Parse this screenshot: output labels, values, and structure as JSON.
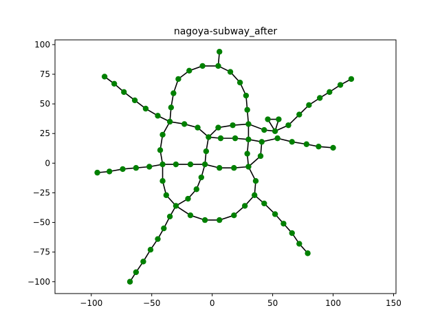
{
  "chart_data": {
    "type": "scatter",
    "title": "nagoya-subway_after",
    "xlabel": "",
    "ylabel": "",
    "xlim": [
      -130,
      152
    ],
    "ylim": [
      -110,
      104
    ],
    "xticks": [
      -100,
      -50,
      0,
      50,
      100,
      150
    ],
    "yticks": [
      -100,
      -75,
      -50,
      -25,
      0,
      25,
      50,
      75,
      100
    ],
    "grid": false,
    "point_color": "#008000",
    "edge_color": "#000000",
    "nodes": [
      [
        6,
        94
      ],
      [
        5,
        82
      ],
      [
        -8,
        82
      ],
      [
        -19,
        78
      ],
      [
        -28,
        71
      ],
      [
        -32,
        59
      ],
      [
        -34,
        47
      ],
      [
        -35,
        35
      ],
      [
        -41,
        24
      ],
      [
        -43,
        11
      ],
      [
        -41,
        -1
      ],
      [
        -41,
        -15
      ],
      [
        -38,
        -27
      ],
      [
        -30,
        -36
      ],
      [
        -18,
        -44
      ],
      [
        -6,
        -48
      ],
      [
        6,
        -48
      ],
      [
        18,
        -44
      ],
      [
        27,
        -36
      ],
      [
        35,
        -27
      ],
      [
        36,
        -15
      ],
      [
        30,
        -3
      ],
      [
        29,
        8
      ],
      [
        30,
        20
      ],
      [
        30,
        33
      ],
      [
        29,
        45
      ],
      [
        28,
        57
      ],
      [
        23,
        68
      ],
      [
        15,
        77
      ],
      [
        -89,
        73
      ],
      [
        -81,
        67
      ],
      [
        -73,
        60
      ],
      [
        -64,
        53
      ],
      [
        -55,
        46
      ],
      [
        -45,
        40
      ],
      [
        -23,
        33
      ],
      [
        -12,
        30
      ],
      [
        -3,
        22
      ],
      [
        -5,
        10
      ],
      [
        -6,
        -1
      ],
      [
        -9,
        -12
      ],
      [
        -13,
        -22
      ],
      [
        -20,
        -30
      ],
      [
        -95,
        -8
      ],
      [
        -85,
        -7
      ],
      [
        -74,
        -5
      ],
      [
        -63,
        -4
      ],
      [
        -52,
        -3
      ],
      [
        -30,
        -1
      ],
      [
        -18,
        -1
      ],
      [
        5,
        30
      ],
      [
        17,
        32
      ],
      [
        6,
        -4
      ],
      [
        18,
        -4
      ],
      [
        7,
        21
      ],
      [
        19,
        21
      ],
      [
        43,
        28
      ],
      [
        52,
        27
      ],
      [
        41,
        18
      ],
      [
        54,
        21
      ],
      [
        66,
        18
      ],
      [
        78,
        16
      ],
      [
        88,
        14
      ],
      [
        100,
        13
      ],
      [
        46,
        37
      ],
      [
        55,
        37
      ],
      [
        63,
        32
      ],
      [
        72,
        41
      ],
      [
        80,
        49
      ],
      [
        89,
        55
      ],
      [
        97,
        60
      ],
      [
        106,
        66
      ],
      [
        115,
        71
      ],
      [
        40,
        6
      ],
      [
        43,
        -34
      ],
      [
        52,
        -43
      ],
      [
        59,
        -51
      ],
      [
        66,
        -59
      ],
      [
        72,
        -68
      ],
      [
        79,
        -76
      ],
      [
        -40,
        -55
      ],
      [
        -35,
        -45
      ],
      [
        -45,
        -64
      ],
      [
        -51,
        -73
      ],
      [
        -57,
        -83
      ],
      [
        -63,
        -92
      ],
      [
        -68,
        -100
      ]
    ],
    "edges": [
      [
        0,
        1
      ],
      [
        1,
        2
      ],
      [
        2,
        3
      ],
      [
        3,
        4
      ],
      [
        4,
        5
      ],
      [
        5,
        6
      ],
      [
        6,
        7
      ],
      [
        7,
        8
      ],
      [
        8,
        9
      ],
      [
        9,
        10
      ],
      [
        10,
        11
      ],
      [
        11,
        12
      ],
      [
        12,
        13
      ],
      [
        13,
        14
      ],
      [
        14,
        15
      ],
      [
        15,
        16
      ],
      [
        16,
        17
      ],
      [
        17,
        18
      ],
      [
        18,
        19
      ],
      [
        19,
        20
      ],
      [
        20,
        21
      ],
      [
        21,
        22
      ],
      [
        22,
        23
      ],
      [
        23,
        24
      ],
      [
        24,
        25
      ],
      [
        25,
        26
      ],
      [
        26,
        27
      ],
      [
        27,
        28
      ],
      [
        28,
        1
      ],
      [
        29,
        30
      ],
      [
        30,
        31
      ],
      [
        31,
        32
      ],
      [
        32,
        33
      ],
      [
        33,
        34
      ],
      [
        34,
        7
      ],
      [
        7,
        35
      ],
      [
        35,
        36
      ],
      [
        36,
        37
      ],
      [
        37,
        38
      ],
      [
        38,
        39
      ],
      [
        39,
        40
      ],
      [
        40,
        41
      ],
      [
        41,
        42
      ],
      [
        42,
        13
      ],
      [
        43,
        44
      ],
      [
        44,
        45
      ],
      [
        45,
        46
      ],
      [
        46,
        47
      ],
      [
        47,
        10
      ],
      [
        10,
        48
      ],
      [
        48,
        49
      ],
      [
        49,
        39
      ],
      [
        39,
        52
      ],
      [
        52,
        53
      ],
      [
        53,
        21
      ],
      [
        21,
        73
      ],
      [
        73,
        58
      ],
      [
        37,
        50
      ],
      [
        50,
        51
      ],
      [
        51,
        24
      ],
      [
        24,
        56
      ],
      [
        56,
        57
      ],
      [
        57,
        64
      ],
      [
        37,
        54
      ],
      [
        54,
        55
      ],
      [
        55,
        23
      ],
      [
        23,
        58
      ],
      [
        58,
        59
      ],
      [
        59,
        60
      ],
      [
        60,
        61
      ],
      [
        61,
        62
      ],
      [
        62,
        63
      ],
      [
        64,
        65
      ],
      [
        65,
        57
      ],
      [
        57,
        66
      ],
      [
        66,
        67
      ],
      [
        67,
        68
      ],
      [
        68,
        69
      ],
      [
        69,
        70
      ],
      [
        70,
        71
      ],
      [
        71,
        72
      ],
      [
        19,
        74
      ],
      [
        74,
        75
      ],
      [
        75,
        76
      ],
      [
        76,
        77
      ],
      [
        77,
        78
      ],
      [
        78,
        79
      ],
      [
        13,
        81
      ],
      [
        81,
        80
      ],
      [
        80,
        82
      ],
      [
        82,
        83
      ],
      [
        83,
        84
      ],
      [
        84,
        85
      ],
      [
        85,
        86
      ]
    ]
  }
}
